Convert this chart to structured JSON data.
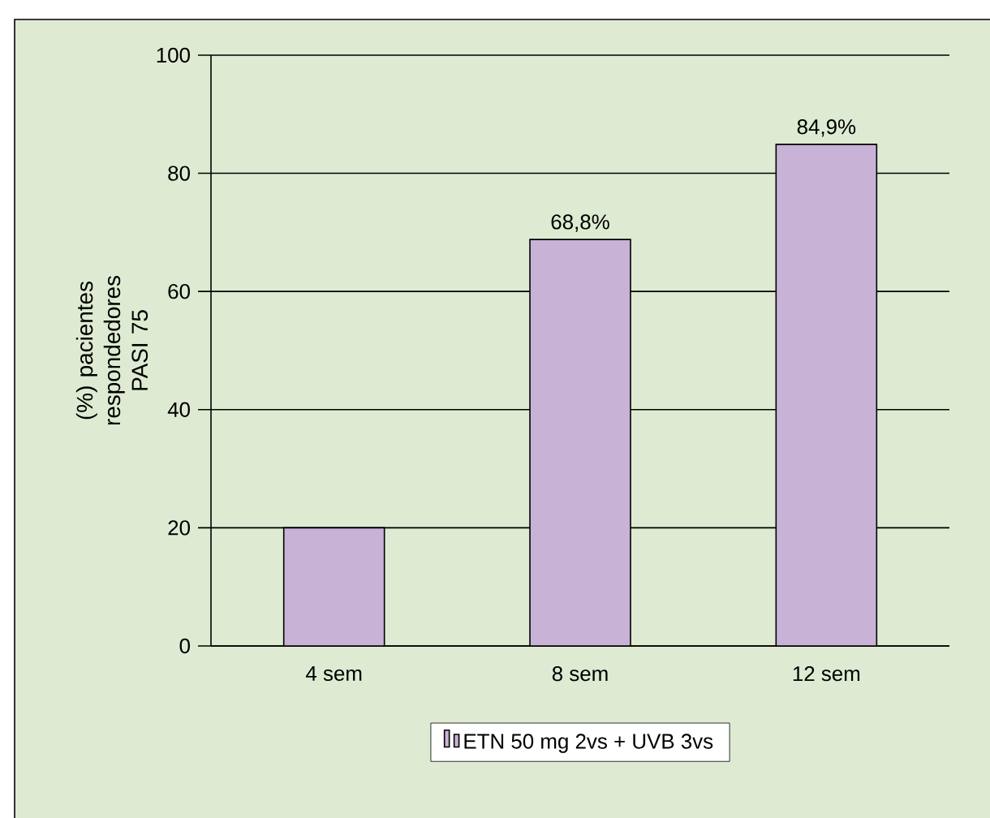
{
  "chart_data": {
    "type": "bar",
    "ylabel": "(%) pacientes respondedores PASI 75",
    "categories": [
      "4 sem",
      "8 sem",
      "12 sem"
    ],
    "series": [
      {
        "name": "ETN 50 mg 2vs + UVB 3vs",
        "color": "#c8b2d6",
        "values": [
          20,
          68.8,
          84.9
        ],
        "value_labels": [
          null,
          "68,8%",
          "84,9%"
        ]
      }
    ],
    "ylim": [
      0,
      100
    ],
    "yticks": [
      0,
      20,
      40,
      60,
      80,
      100
    ],
    "grid": "y",
    "legend": "bottom"
  }
}
